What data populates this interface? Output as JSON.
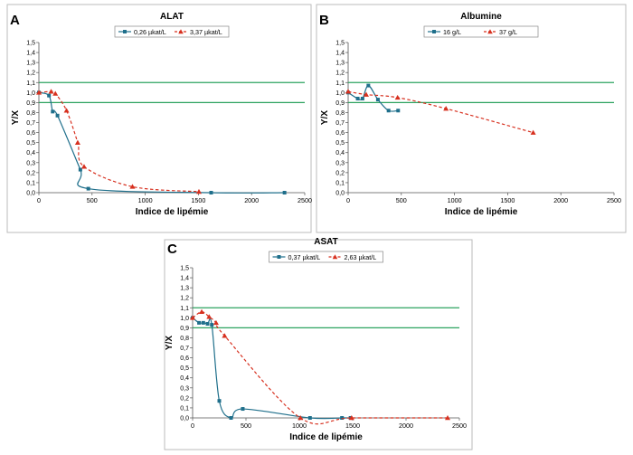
{
  "colors": {
    "series1": "#1f6f8b",
    "series2": "#d7301f",
    "reference": "#2ca25f",
    "border": "#bbbbbb",
    "axis": "#555555",
    "background": "#ffffff"
  },
  "chart_data": [
    {
      "type": "line",
      "panel_letter": "A",
      "title": "ALAT",
      "xlabel": "Indice de lipémie",
      "ylabel": "Y/X",
      "xlim": [
        0,
        2500
      ],
      "ylim": [
        0,
        1.5
      ],
      "xticks": [
        "0",
        "500",
        "1000",
        "1500",
        "2000",
        "2500"
      ],
      "yticks": [
        "0,0",
        "0,1",
        "0,2",
        "0,3",
        "0,4",
        "0,5",
        "0,6",
        "0,7",
        "0,8",
        "0,9",
        "1,0",
        "1,1",
        "1,2",
        "1,3",
        "1,4",
        "1,5"
      ],
      "reference_lines": [
        0.9,
        1.1
      ],
      "grid": false,
      "legend_position": "top-center",
      "series": [
        {
          "name": "0,26 µkat/L",
          "style": "solid",
          "marker": "square",
          "x": [
            0,
            95,
            130,
            175,
            390,
            465,
            1620,
            2310
          ],
          "y": [
            1.0,
            0.97,
            0.81,
            0.77,
            0.23,
            0.04,
            0.0,
            0.0
          ]
        },
        {
          "name": "3,37 µkat/L",
          "style": "dashed",
          "marker": "triangle",
          "x": [
            0,
            115,
            155,
            260,
            365,
            425,
            880,
            1505
          ],
          "y": [
            1.0,
            1.01,
            0.99,
            0.82,
            0.5,
            0.26,
            0.06,
            0.01
          ]
        }
      ]
    },
    {
      "type": "line",
      "panel_letter": "B",
      "title": "Albumine",
      "xlabel": "Indice de lipémie",
      "ylabel": "Y/X",
      "xlim": [
        0,
        2500
      ],
      "ylim": [
        0,
        1.5
      ],
      "xticks": [
        "0",
        "500",
        "1000",
        "1500",
        "2000",
        "2500"
      ],
      "yticks": [
        "0,0",
        "0,1",
        "0,2",
        "0,3",
        "0,4",
        "0,5",
        "0,6",
        "0,7",
        "0,8",
        "0,9",
        "1,0",
        "1,1",
        "1,2",
        "1,3",
        "1,4",
        "1,5"
      ],
      "reference_lines": [
        0.9,
        1.1
      ],
      "grid": false,
      "legend_position": "top-center",
      "series": [
        {
          "name": "16 g/L",
          "style": "solid",
          "marker": "square",
          "x": [
            0,
            90,
            135,
            190,
            280,
            380,
            470
          ],
          "y": [
            1.0,
            0.94,
            0.94,
            1.07,
            0.93,
            0.82,
            0.82
          ]
        },
        {
          "name": "37 g/L",
          "style": "dashed",
          "marker": "triangle",
          "x": [
            0,
            170,
            465,
            920,
            1740
          ],
          "y": [
            1.01,
            0.98,
            0.95,
            0.84,
            0.6
          ]
        }
      ]
    },
    {
      "type": "line",
      "panel_letter": "C",
      "title": "ASAT",
      "xlabel": "Indice de lipémie",
      "ylabel": "Y/X",
      "xlim": [
        0,
        2500
      ],
      "ylim": [
        0,
        1.5
      ],
      "xticks": [
        "0",
        "500",
        "1000",
        "1500",
        "2000",
        "2500"
      ],
      "yticks": [
        "0,0",
        "0,1",
        "0,2",
        "0,3",
        "0,4",
        "0,5",
        "0,6",
        "0,7",
        "0,8",
        "0,9",
        "1,0",
        "1,1",
        "1,2",
        "1,3",
        "1,4",
        "1,5"
      ],
      "reference_lines": [
        0.9,
        1.1
      ],
      "grid": false,
      "legend_position": "top-center",
      "series": [
        {
          "name": "0,37 µkat/L",
          "style": "solid",
          "marker": "square",
          "x": [
            0,
            60,
            100,
            140,
            180,
            250,
            360,
            470,
            1100,
            1400,
            1480
          ],
          "y": [
            1.0,
            0.95,
            0.95,
            0.94,
            0.93,
            0.17,
            0.0,
            0.09,
            0.0,
            0.0,
            0.0
          ]
        },
        {
          "name": "2,63 µkat/L",
          "style": "dashed",
          "marker": "triangle",
          "x": [
            0,
            85,
            155,
            220,
            300,
            1010,
            1490,
            2390
          ],
          "y": [
            1.0,
            1.06,
            1.01,
            0.95,
            0.82,
            0.0,
            0.0,
            0.0
          ]
        }
      ]
    }
  ]
}
